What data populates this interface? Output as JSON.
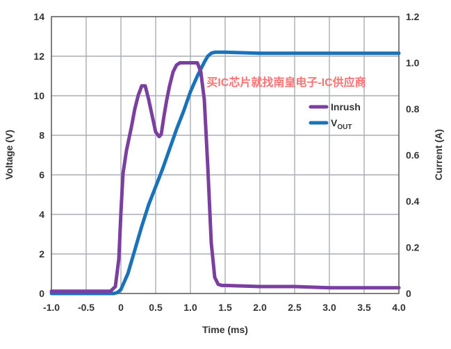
{
  "chart_data": {
    "type": "line",
    "xlabel": "Time (ms)",
    "ylabel_left": "Voltage (V)",
    "ylabel_right": "Current (A)",
    "xlim": [
      -1.0,
      4.0
    ],
    "ylim_left": [
      0,
      14
    ],
    "ylim_right": [
      0,
      1.2
    ],
    "grid": true,
    "legend_position": "upper-right inside plot",
    "x_ticks": [
      "-1.0",
      "-0.5",
      "0",
      "0.5",
      "1.0",
      "1.5",
      "2.0",
      "2.5",
      "3.0",
      "3.5",
      "4.0"
    ],
    "y_left_ticks": [
      "0",
      "2",
      "4",
      "6",
      "8",
      "10",
      "12",
      "14"
    ],
    "y_right_ticks": [
      "0",
      "0.2",
      "0.4",
      "0.6",
      "0.8",
      "1.0",
      "1.2"
    ],
    "series": [
      {
        "name": "Inrush",
        "axis": "right",
        "color": "#7b3fa0",
        "x": [
          -1.0,
          -0.5,
          -0.15,
          -0.08,
          -0.03,
          0.0,
          0.03,
          0.08,
          0.15,
          0.2,
          0.25,
          0.3,
          0.35,
          0.4,
          0.45,
          0.5,
          0.55,
          0.58,
          0.62,
          0.66,
          0.7,
          0.75,
          0.8,
          0.85,
          0.9,
          1.0,
          1.05,
          1.1,
          1.15,
          1.2,
          1.25,
          1.3,
          1.35,
          1.4,
          1.45,
          1.5,
          2.0,
          2.5,
          3.0,
          3.5,
          4.0
        ],
        "y": [
          0.01,
          0.01,
          0.01,
          0.03,
          0.15,
          0.35,
          0.52,
          0.62,
          0.72,
          0.8,
          0.86,
          0.9,
          0.9,
          0.84,
          0.77,
          0.7,
          0.68,
          0.69,
          0.77,
          0.84,
          0.9,
          0.96,
          0.99,
          1.0,
          1.0,
          1.0,
          1.0,
          1.0,
          0.96,
          0.84,
          0.55,
          0.22,
          0.07,
          0.04,
          0.035,
          0.035,
          0.03,
          0.03,
          0.025,
          0.025,
          0.025
        ]
      },
      {
        "name": "V",
        "name_subscript": "OUT",
        "axis": "left",
        "color": "#1a73b8",
        "x": [
          -1.0,
          -0.1,
          -0.05,
          0.0,
          0.05,
          0.1,
          0.2,
          0.3,
          0.4,
          0.5,
          0.6,
          0.7,
          0.8,
          0.9,
          1.0,
          1.1,
          1.2,
          1.25,
          1.3,
          1.35,
          1.4,
          1.5,
          2.0,
          2.5,
          3.0,
          3.5,
          4.0
        ],
        "y": [
          0.0,
          0.0,
          0.05,
          0.2,
          0.6,
          1.0,
          2.2,
          3.4,
          4.5,
          5.4,
          6.3,
          7.3,
          8.3,
          9.2,
          10.2,
          11.0,
          11.7,
          12.0,
          12.15,
          12.2,
          12.2,
          12.2,
          12.15,
          12.15,
          12.15,
          12.15,
          12.15
        ]
      }
    ]
  },
  "watermark": "买IC芯片就找南皇电子-IC供应商"
}
